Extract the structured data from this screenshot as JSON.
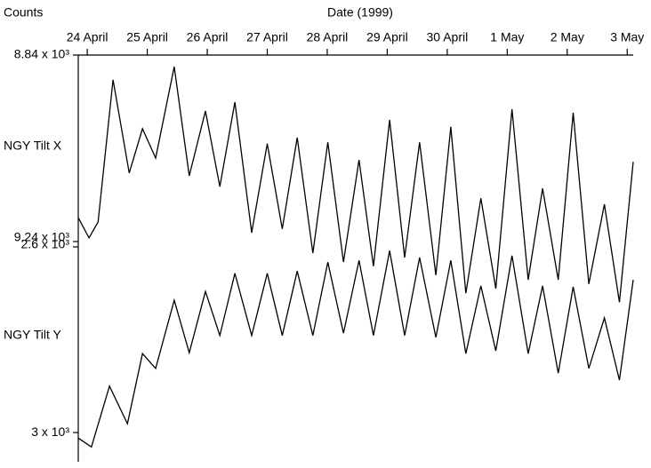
{
  "chart_data": {
    "type": "line",
    "xlabel": "Date (1999)",
    "ylabel": "Counts",
    "xlim": [
      -0.15,
      9.1
    ],
    "xticks": [
      {
        "value": 0,
        "label": "24 April"
      },
      {
        "value": 1,
        "label": "25 April"
      },
      {
        "value": 2,
        "label": "26 April"
      },
      {
        "value": 3,
        "label": "27 April"
      },
      {
        "value": 4,
        "label": "28 April"
      },
      {
        "value": 5,
        "label": "29 April"
      },
      {
        "value": 6,
        "label": "30 April"
      },
      {
        "value": 7,
        "label": "1 May"
      },
      {
        "value": 8,
        "label": "2 May"
      },
      {
        "value": 9,
        "label": "3 May"
      }
    ],
    "series": [
      {
        "name": "NGY Tilt X",
        "color": "#000000",
        "ylim": [
          9240,
          8840
        ],
        "yticks": [
          {
            "value": 8840,
            "label": "8.84 x 10³"
          },
          {
            "value": 9240,
            "label": "9.24 x 10³"
          }
        ],
        "x": [
          -0.15,
          0.03,
          0.18,
          0.43,
          0.7,
          0.92,
          1.14,
          1.45,
          1.7,
          1.97,
          2.21,
          2.46,
          2.74,
          3.0,
          3.25,
          3.5,
          3.76,
          4.01,
          4.27,
          4.53,
          4.77,
          5.04,
          5.29,
          5.54,
          5.81,
          6.06,
          6.31,
          6.56,
          6.81,
          7.08,
          7.35,
          7.59,
          7.85,
          8.1,
          8.36,
          8.62,
          8.87,
          9.1
        ],
        "values": [
          9189,
          9232,
          9198,
          8893,
          9093,
          8998,
          9061,
          8865,
          9099,
          8960,
          9122,
          8941,
          9221,
          9030,
          9213,
          9017,
          9265,
          9027,
          9284,
          9065,
          9293,
          8979,
          9274,
          9027,
          9312,
          8994,
          9351,
          9147,
          9341,
          8956,
          9322,
          9126,
          9322,
          8964,
          9331,
          9160,
          9370,
          9069
        ]
      },
      {
        "name": "NGY Tilt Y",
        "color": "#000000",
        "ylim": [
          3063,
          2600
        ],
        "yticks": [
          {
            "value": 2600,
            "label": "2.6 x 10³"
          },
          {
            "value": 3000,
            "label": "3 x 10³"
          }
        ],
        "x": [
          -0.15,
          0.07,
          0.37,
          0.67,
          0.92,
          1.14,
          1.45,
          1.7,
          1.97,
          2.21,
          2.46,
          2.74,
          3.0,
          3.25,
          3.5,
          3.76,
          4.01,
          4.27,
          4.53,
          4.77,
          5.04,
          5.29,
          5.54,
          5.81,
          6.06,
          6.31,
          6.56,
          6.81,
          7.08,
          7.35,
          7.59,
          7.85,
          8.1,
          8.36,
          8.62,
          8.87,
          9.1
        ],
        "values": [
          3012,
          3031,
          2900,
          2981,
          2830,
          2862,
          2715,
          2828,
          2696,
          2791,
          2657,
          2791,
          2657,
          2791,
          2652,
          2791,
          2633,
          2786,
          2629,
          2791,
          2608,
          2791,
          2623,
          2795,
          2629,
          2830,
          2684,
          2824,
          2619,
          2830,
          2684,
          2872,
          2686,
          2862,
          2753,
          2887,
          2671
        ]
      }
    ]
  }
}
